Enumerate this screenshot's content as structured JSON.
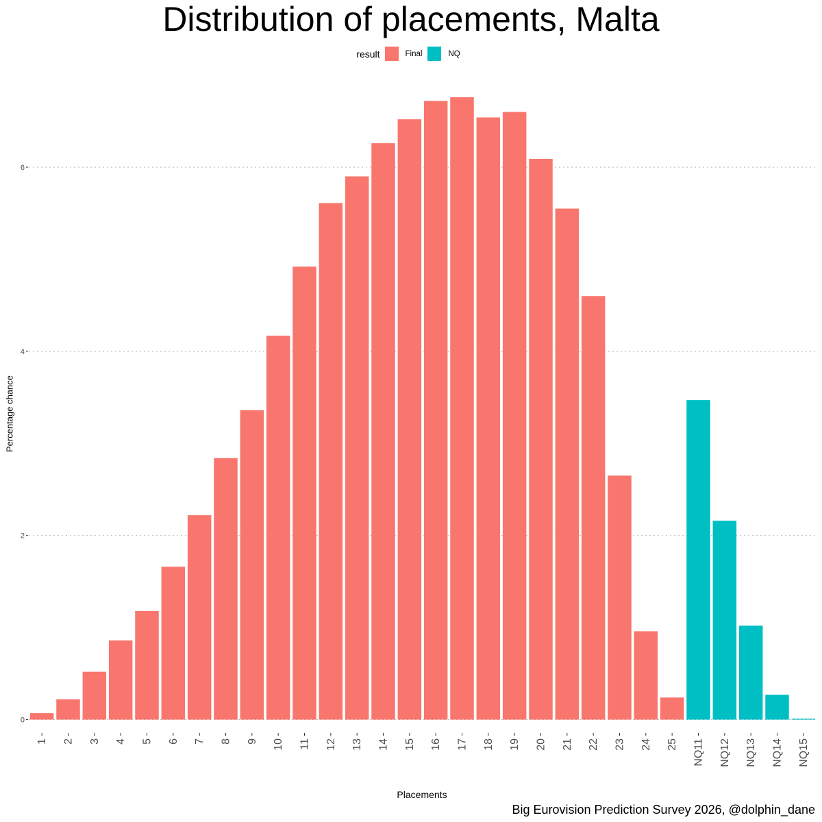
{
  "chart_data": {
    "type": "bar",
    "title": "Distribution of placements, Malta",
    "xlabel": "Placements",
    "ylabel": "Percentage chance",
    "caption": "Big Eurovision Prediction Survey 2026, @dolphin_dane",
    "legend": {
      "title": "result",
      "position": "top",
      "entries": [
        {
          "name": "Final",
          "color": "#F8766D"
        },
        {
          "name": "NQ",
          "color": "#00BFC4"
        }
      ]
    },
    "ylim": [
      -0.13,
      6.96
    ],
    "yticks": [
      0,
      2,
      4,
      6
    ],
    "ytick_labels": [
      "0",
      "2",
      "4",
      "6"
    ],
    "grid": "horizontal-dotted",
    "categories": [
      "1",
      "2",
      "3",
      "4",
      "5",
      "6",
      "7",
      "8",
      "9",
      "10",
      "11",
      "12",
      "13",
      "14",
      "15",
      "16",
      "17",
      "18",
      "19",
      "20",
      "21",
      "22",
      "23",
      "24",
      "25",
      "NQ11",
      "NQ12",
      "NQ13",
      "NQ14",
      "NQ15"
    ],
    "values": [
      0.07,
      0.22,
      0.52,
      0.86,
      1.18,
      1.66,
      2.22,
      2.84,
      3.36,
      4.17,
      4.92,
      5.61,
      5.9,
      6.26,
      6.52,
      6.72,
      6.76,
      6.54,
      6.6,
      6.09,
      5.55,
      4.6,
      2.65,
      0.96,
      0.24,
      3.47,
      2.16,
      1.02,
      0.27,
      0.01
    ],
    "groups": [
      "Final",
      "Final",
      "Final",
      "Final",
      "Final",
      "Final",
      "Final",
      "Final",
      "Final",
      "Final",
      "Final",
      "Final",
      "Final",
      "Final",
      "Final",
      "Final",
      "Final",
      "Final",
      "Final",
      "Final",
      "Final",
      "Final",
      "Final",
      "Final",
      "Final",
      "NQ",
      "NQ",
      "NQ",
      "NQ",
      "NQ"
    ]
  }
}
